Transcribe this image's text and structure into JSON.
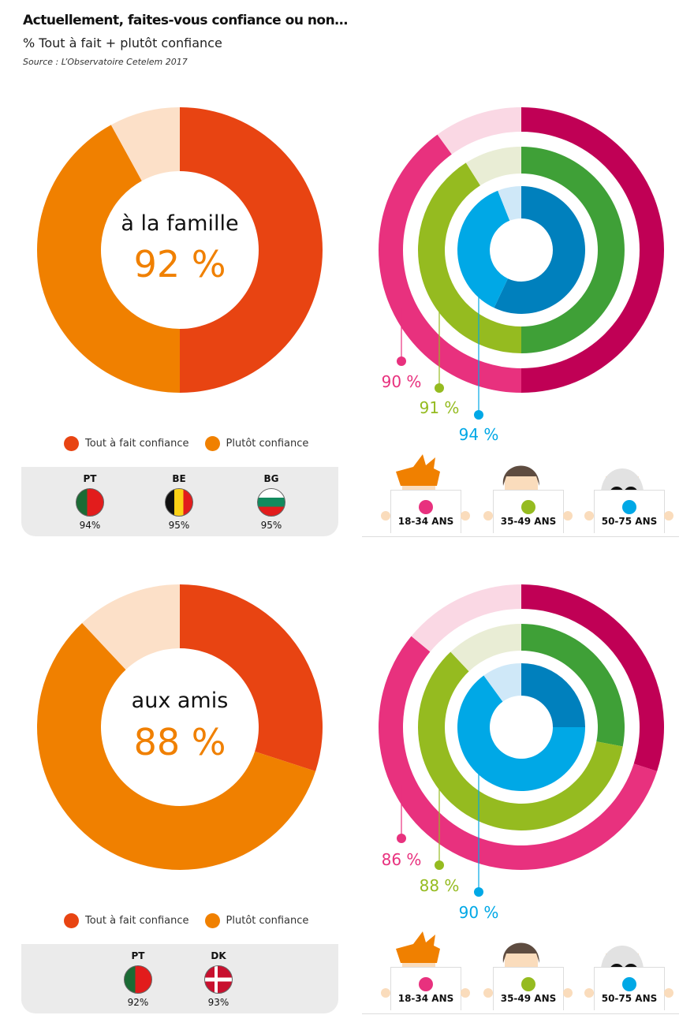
{
  "header": {
    "title": "Actuellement, faites-vous confiance ou non…",
    "subtitle": "% Tout à fait + plutôt confiance",
    "source": "Source : L’Observatoire Cetelem 2017"
  },
  "legend": {
    "tout": "Tout à fait confiance",
    "plutot": "Plutôt confiance"
  },
  "colors": {
    "tout": "#e84412",
    "plutot": "#f08000",
    "rest": "#fce0c8",
    "pinkDark": "#c00055",
    "pink": "#e8317e",
    "pinkLight": "#fad8e4",
    "greenDark": "#3fa037",
    "green": "#95bb20",
    "greenLight": "#e9edd5",
    "blueDark": "#0080bd",
    "blue": "#00a8e6",
    "blueLight": "#cfe8f8"
  },
  "chart_data": [
    {
      "type": "pie",
      "title": "à la famille",
      "total_label": "92 %",
      "series": [
        {
          "name": "Tout à fait confiance",
          "value": 50
        },
        {
          "name": "Plutôt confiance",
          "value": 42
        }
      ],
      "countries": [
        {
          "code": "PT",
          "value": "94%"
        },
        {
          "code": "BE",
          "value": "95%"
        },
        {
          "code": "BG",
          "value": "95%"
        }
      ],
      "age_groups": [
        {
          "name": "18-34 ANS",
          "tout": 50,
          "total": 90,
          "label": "90 %"
        },
        {
          "name": "35-49 ANS",
          "tout": 50,
          "total": 91,
          "label": "91 %"
        },
        {
          "name": "50-75 ANS",
          "tout": 57,
          "total": 94,
          "label": "94 %"
        }
      ]
    },
    {
      "type": "pie",
      "title": "aux amis",
      "total_label": "88 %",
      "series": [
        {
          "name": "Tout à fait confiance",
          "value": 30
        },
        {
          "name": "Plutôt confiance",
          "value": 58
        }
      ],
      "countries": [
        {
          "code": "PT",
          "value": "92%"
        },
        {
          "code": "DK",
          "value": "93%"
        }
      ],
      "age_groups": [
        {
          "name": "18-34 ANS",
          "tout": 30,
          "total": 86,
          "label": "86 %"
        },
        {
          "name": "35-49 ANS",
          "tout": 28,
          "total": 88,
          "label": "88 %"
        },
        {
          "name": "50-75 ANS",
          "tout": 25,
          "total": 90,
          "label": "90 %"
        }
      ]
    }
  ]
}
